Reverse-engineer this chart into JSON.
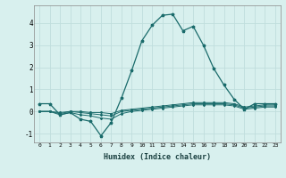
{
  "xlabel": "Humidex (Indice chaleur)",
  "background_color": "#d8f0ee",
  "grid_color": "#c0dedd",
  "line_color": "#1a6b6b",
  "x": [
    0,
    1,
    2,
    3,
    4,
    5,
    6,
    7,
    8,
    9,
    10,
    11,
    12,
    13,
    14,
    15,
    16,
    17,
    18,
    19,
    20,
    21,
    22,
    23
  ],
  "y_main": [
    0.35,
    0.35,
    -0.15,
    -0.05,
    -0.35,
    -0.45,
    -1.1,
    -0.5,
    0.6,
    1.85,
    3.2,
    3.9,
    4.35,
    4.4,
    3.65,
    3.85,
    3.0,
    1.95,
    1.2,
    0.55,
    0.1,
    0.35,
    0.35,
    0.35
  ],
  "y_line1": [
    0.0,
    0.0,
    -0.15,
    -0.05,
    -0.15,
    -0.2,
    -0.3,
    -0.35,
    -0.1,
    0.0,
    0.05,
    0.1,
    0.15,
    0.2,
    0.25,
    0.3,
    0.3,
    0.3,
    0.3,
    0.25,
    0.1,
    0.15,
    0.2,
    0.2
  ],
  "y_line2": [
    0.0,
    0.0,
    -0.1,
    -0.0,
    -0.05,
    -0.1,
    -0.15,
    -0.2,
    0.0,
    0.05,
    0.1,
    0.15,
    0.2,
    0.25,
    0.3,
    0.35,
    0.35,
    0.35,
    0.35,
    0.3,
    0.15,
    0.2,
    0.25,
    0.25
  ],
  "y_line3": [
    0.0,
    0.0,
    -0.05,
    0.0,
    0.0,
    -0.05,
    -0.05,
    -0.1,
    0.05,
    0.1,
    0.15,
    0.2,
    0.25,
    0.3,
    0.35,
    0.4,
    0.4,
    0.4,
    0.4,
    0.35,
    0.2,
    0.25,
    0.3,
    0.3
  ],
  "ylim": [
    -1.4,
    4.8
  ],
  "xlim": [
    -0.5,
    23.5
  ],
  "yticks": [
    -1,
    0,
    1,
    2,
    3,
    4
  ],
  "xticks": [
    0,
    1,
    2,
    3,
    4,
    5,
    6,
    7,
    8,
    9,
    10,
    11,
    12,
    13,
    14,
    15,
    16,
    17,
    18,
    19,
    20,
    21,
    22,
    23
  ]
}
